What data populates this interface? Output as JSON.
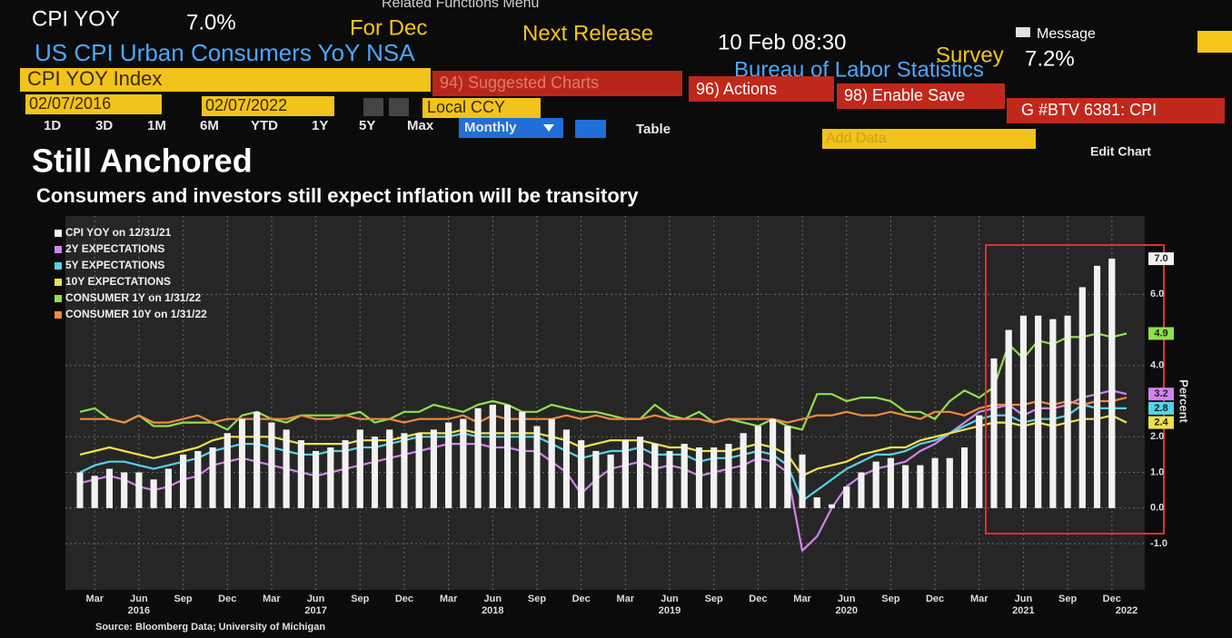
{
  "header": {
    "menu": "Related Functions Menu",
    "ticker": "CPI YOY",
    "value": "7.0%",
    "period": "For Dec",
    "next_release_label": "Next Release",
    "next_release": "10 Feb 08:30",
    "message": "Message",
    "description": "US CPI Urban Consumers YoY NSA",
    "survey_label": "Survey",
    "survey": "7.2%",
    "agency": "Bureau of Labor Statistics"
  },
  "toolbar": {
    "security": "CPI YOY Index",
    "suggested": "94) Suggested Charts",
    "actions": "96) Actions",
    "enable_save": "98) Enable Save",
    "page": "G #BTV 6381: CPI",
    "start_date": "02/07/2016",
    "end_date": "02/07/2022",
    "currency": "Local CCY",
    "ranges": [
      "1D",
      "3D",
      "1M",
      "6M",
      "YTD",
      "1Y",
      "5Y",
      "Max"
    ],
    "frequency": "Monthly",
    "table": "Table",
    "add_data": "Add Data",
    "edit_chart": "Edit Chart"
  },
  "chart_data": {
    "type": "combo",
    "title": "Still Anchored",
    "subtitle": "Consumers and investors still expect inflation will be transitory",
    "y_label": "Percent",
    "source": "Source: Bloomberg Data; University of Michigan",
    "legend": "top-left",
    "grid": true,
    "categories": [
      null,
      "Mar",
      null,
      null,
      "Jun",
      null,
      null,
      "Sep",
      null,
      null,
      "Dec",
      null,
      null,
      "Mar",
      null,
      null,
      "Jun",
      null,
      null,
      "Sep",
      null,
      null,
      "Dec",
      null,
      null,
      "Mar",
      null,
      null,
      "Jun",
      null,
      null,
      "Sep",
      null,
      null,
      "Dec",
      null,
      null,
      "Mar",
      null,
      null,
      "Jun",
      null,
      null,
      "Sep",
      null,
      null,
      "Dec",
      null,
      null,
      "Mar",
      null,
      null,
      "Jun",
      null,
      null,
      "Sep",
      null,
      null,
      "Dec",
      null,
      null,
      "Mar",
      null,
      null,
      "Jun",
      null,
      null,
      "Sep",
      null,
      null,
      "Dec",
      null
    ],
    "years": [
      null,
      null,
      null,
      null,
      "2016",
      null,
      null,
      null,
      null,
      null,
      null,
      null,
      null,
      null,
      null,
      null,
      "2017",
      null,
      null,
      null,
      null,
      null,
      null,
      null,
      null,
      null,
      null,
      null,
      "2018",
      null,
      null,
      null,
      null,
      null,
      null,
      null,
      null,
      null,
      null,
      null,
      "2019",
      null,
      null,
      null,
      null,
      null,
      null,
      null,
      null,
      null,
      null,
      null,
      "2020",
      null,
      null,
      null,
      null,
      null,
      null,
      null,
      null,
      null,
      null,
      null,
      "2021",
      null,
      null,
      null,
      null,
      null,
      null,
      "2022"
    ],
    "ylim": [
      -2.3,
      8.2
    ],
    "yticks": [
      {
        "value": -1,
        "label": "-1.0"
      },
      {
        "value": 0,
        "label": "0.0"
      },
      {
        "value": 1,
        "label": "1.0"
      },
      {
        "value": 2,
        "label": "2.0"
      },
      {
        "value": 4,
        "label": "4.0"
      },
      {
        "value": 6,
        "label": "6.0"
      }
    ],
    "series": [
      {
        "name": "CPI YOY on 12/31/21",
        "type": "bar",
        "color": "#f2f2f2",
        "values": [
          1.0,
          0.9,
          1.1,
          1.0,
          1.0,
          0.8,
          1.1,
          1.5,
          1.6,
          1.7,
          2.1,
          2.5,
          2.7,
          2.4,
          2.2,
          1.9,
          1.6,
          1.7,
          1.9,
          2.2,
          2.0,
          2.2,
          2.1,
          2.1,
          2.2,
          2.4,
          2.5,
          2.8,
          2.9,
          2.9,
          2.7,
          2.3,
          2.5,
          2.2,
          1.9,
          1.6,
          1.5,
          1.9,
          2.0,
          1.8,
          1.6,
          1.8,
          1.7,
          1.7,
          1.8,
          2.1,
          2.3,
          2.5,
          2.3,
          1.5,
          0.3,
          0.1,
          0.6,
          1.0,
          1.3,
          1.4,
          1.2,
          1.2,
          1.4,
          1.4,
          1.7,
          2.6,
          4.2,
          5.0,
          5.4,
          5.4,
          5.3,
          5.4,
          6.2,
          6.8,
          7.0,
          null
        ],
        "value_labels": [
          null,
          null,
          null,
          null,
          null,
          null,
          null,
          null,
          null,
          null,
          null,
          null,
          null,
          null,
          null,
          null,
          null,
          null,
          null,
          null,
          null,
          null,
          null,
          null,
          null,
          null,
          null,
          null,
          null,
          null,
          null,
          null,
          null,
          null,
          null,
          null,
          null,
          null,
          null,
          null,
          null,
          null,
          null,
          null,
          null,
          null,
          null,
          null,
          null,
          null,
          null,
          null,
          null,
          null,
          null,
          null,
          null,
          null,
          null,
          null,
          null,
          null,
          null,
          null,
          null,
          null,
          null,
          null,
          null,
          null,
          "7.0",
          null
        ]
      },
      {
        "name": "2Y EXPECTATIONS",
        "type": "line",
        "color": "#d283ee",
        "values": [
          0.7,
          0.8,
          0.9,
          0.8,
          0.6,
          0.5,
          0.6,
          0.8,
          0.9,
          1.2,
          1.3,
          1.4,
          1.3,
          1.2,
          1.1,
          1.0,
          0.9,
          1.0,
          1.1,
          1.2,
          1.3,
          1.4,
          1.5,
          1.6,
          1.7,
          1.8,
          1.8,
          1.8,
          1.7,
          1.7,
          1.6,
          1.6,
          1.3,
          1.0,
          0.4,
          0.8,
          1.1,
          1.2,
          1.3,
          1.1,
          1.2,
          1.1,
          0.9,
          1.0,
          1.1,
          1.2,
          1.4,
          1.3,
          1.0,
          -1.2,
          -0.8,
          0.0,
          0.6,
          0.9,
          1.1,
          1.2,
          1.3,
          1.6,
          1.8,
          2.1,
          2.4,
          2.7,
          2.8,
          2.9,
          2.6,
          2.8,
          2.8,
          2.9,
          3.1,
          3.2,
          3.3,
          3.2
        ],
        "value_labels": [
          null,
          null,
          null,
          null,
          null,
          null,
          null,
          null,
          null,
          null,
          null,
          null,
          null,
          null,
          null,
          null,
          null,
          null,
          null,
          null,
          null,
          null,
          null,
          null,
          null,
          null,
          null,
          null,
          null,
          null,
          null,
          null,
          null,
          null,
          null,
          null,
          null,
          null,
          null,
          null,
          null,
          null,
          null,
          null,
          null,
          null,
          null,
          null,
          null,
          null,
          null,
          null,
          null,
          null,
          null,
          null,
          null,
          null,
          null,
          null,
          null,
          null,
          null,
          null,
          null,
          null,
          null,
          null,
          null,
          null,
          null,
          "3.2"
        ]
      },
      {
        "name": "5Y EXPECTATIONS",
        "type": "line",
        "color": "#55d3e6",
        "values": [
          1.0,
          1.2,
          1.3,
          1.3,
          1.2,
          1.1,
          1.2,
          1.3,
          1.4,
          1.6,
          1.7,
          1.8,
          1.8,
          1.7,
          1.6,
          1.5,
          1.5,
          1.6,
          1.6,
          1.7,
          1.7,
          1.8,
          1.9,
          2.0,
          2.0,
          2.0,
          2.1,
          2.0,
          2.0,
          2.0,
          2.0,
          2.0,
          1.8,
          1.6,
          1.4,
          1.5,
          1.6,
          1.6,
          1.7,
          1.5,
          1.5,
          1.5,
          1.3,
          1.4,
          1.4,
          1.5,
          1.6,
          1.5,
          1.2,
          0.2,
          0.5,
          0.8,
          1.1,
          1.3,
          1.5,
          1.5,
          1.6,
          1.8,
          1.9,
          2.1,
          2.3,
          2.5,
          2.6,
          2.6,
          2.4,
          2.5,
          2.5,
          2.6,
          2.9,
          2.8,
          2.8,
          2.8
        ],
        "value_labels": [
          null,
          null,
          null,
          null,
          null,
          null,
          null,
          null,
          null,
          null,
          null,
          null,
          null,
          null,
          null,
          null,
          null,
          null,
          null,
          null,
          null,
          null,
          null,
          null,
          null,
          null,
          null,
          null,
          null,
          null,
          null,
          null,
          null,
          null,
          null,
          null,
          null,
          null,
          null,
          null,
          null,
          null,
          null,
          null,
          null,
          null,
          null,
          null,
          null,
          null,
          null,
          null,
          null,
          null,
          null,
          null,
          null,
          null,
          null,
          null,
          null,
          null,
          null,
          null,
          null,
          null,
          null,
          null,
          null,
          null,
          null,
          "2.8"
        ]
      },
      {
        "name": "10Y EXPECTATIONS",
        "type": "line",
        "color": "#eee24a",
        "values": [
          1.5,
          1.6,
          1.7,
          1.6,
          1.5,
          1.4,
          1.5,
          1.6,
          1.7,
          1.9,
          2.0,
          2.0,
          2.0,
          2.0,
          1.9,
          1.8,
          1.8,
          1.8,
          1.8,
          1.9,
          1.9,
          1.9,
          2.0,
          2.1,
          2.1,
          2.1,
          2.2,
          2.1,
          2.1,
          2.1,
          2.1,
          2.1,
          2.0,
          1.9,
          1.7,
          1.8,
          1.9,
          1.9,
          1.9,
          1.8,
          1.7,
          1.7,
          1.6,
          1.6,
          1.6,
          1.7,
          1.8,
          1.7,
          1.5,
          0.9,
          1.1,
          1.2,
          1.3,
          1.5,
          1.6,
          1.7,
          1.7,
          1.9,
          2.0,
          2.1,
          2.2,
          2.3,
          2.4,
          2.4,
          2.3,
          2.4,
          2.3,
          2.4,
          2.5,
          2.5,
          2.6,
          2.4
        ],
        "value_labels": [
          null,
          null,
          null,
          null,
          null,
          null,
          null,
          null,
          null,
          null,
          null,
          null,
          null,
          null,
          null,
          null,
          null,
          null,
          null,
          null,
          null,
          null,
          null,
          null,
          null,
          null,
          null,
          null,
          null,
          null,
          null,
          null,
          null,
          null,
          null,
          null,
          null,
          null,
          null,
          null,
          null,
          null,
          null,
          null,
          null,
          null,
          null,
          null,
          null,
          null,
          null,
          null,
          null,
          null,
          null,
          null,
          null,
          null,
          null,
          null,
          null,
          null,
          null,
          null,
          null,
          null,
          null,
          null,
          null,
          null,
          null,
          "2.4"
        ]
      },
      {
        "name": "CONSUMER 1Y on 1/31/22",
        "type": "line",
        "color": "#8fe04c",
        "values": [
          2.7,
          2.8,
          2.5,
          2.4,
          2.6,
          2.3,
          2.3,
          2.4,
          2.4,
          2.4,
          2.2,
          2.6,
          2.7,
          2.5,
          2.4,
          2.6,
          2.6,
          2.6,
          2.6,
          2.7,
          2.4,
          2.5,
          2.7,
          2.7,
          2.9,
          2.8,
          2.7,
          2.9,
          3.0,
          2.9,
          2.7,
          2.7,
          2.9,
          2.8,
          2.7,
          2.7,
          2.6,
          2.5,
          2.5,
          2.9,
          2.6,
          2.5,
          2.7,
          2.4,
          2.5,
          2.4,
          2.3,
          2.5,
          2.3,
          2.2,
          3.2,
          3.2,
          3.0,
          3.1,
          3.1,
          3.0,
          2.7,
          2.7,
          2.5,
          3.0,
          3.3,
          3.1,
          3.4,
          4.6,
          4.2,
          4.7,
          4.6,
          4.8,
          4.8,
          4.9,
          4.8,
          4.9
        ],
        "value_labels": [
          null,
          null,
          null,
          null,
          null,
          null,
          null,
          null,
          null,
          null,
          null,
          null,
          null,
          null,
          null,
          null,
          null,
          null,
          null,
          null,
          null,
          null,
          null,
          null,
          null,
          null,
          null,
          null,
          null,
          null,
          null,
          null,
          null,
          null,
          null,
          null,
          null,
          null,
          null,
          null,
          null,
          null,
          null,
          null,
          null,
          null,
          null,
          null,
          null,
          null,
          null,
          null,
          null,
          null,
          null,
          null,
          null,
          null,
          null,
          null,
          null,
          null,
          null,
          null,
          null,
          null,
          null,
          null,
          null,
          null,
          null,
          "4.9"
        ]
      },
      {
        "name": "CONSUMER 10Y on 1/31/22",
        "type": "line",
        "color": "#f28a3e",
        "values": [
          2.5,
          2.5,
          2.5,
          2.4,
          2.6,
          2.4,
          2.4,
          2.5,
          2.6,
          2.4,
          2.5,
          2.5,
          2.5,
          2.5,
          2.5,
          2.6,
          2.5,
          2.5,
          2.6,
          2.5,
          2.5,
          2.5,
          2.4,
          2.5,
          2.5,
          2.5,
          2.6,
          2.4,
          2.6,
          2.5,
          2.5,
          2.5,
          2.5,
          2.6,
          2.5,
          2.6,
          2.5,
          2.5,
          2.5,
          2.6,
          2.5,
          2.5,
          2.5,
          2.4,
          2.5,
          2.5,
          2.5,
          2.5,
          2.4,
          2.5,
          2.6,
          2.6,
          2.7,
          2.6,
          2.6,
          2.7,
          2.6,
          2.5,
          2.7,
          2.7,
          2.6,
          2.8,
          2.9,
          2.9,
          2.9,
          3.0,
          2.9,
          3.0,
          2.9,
          3.0,
          3.0,
          3.1
        ]
      }
    ]
  }
}
